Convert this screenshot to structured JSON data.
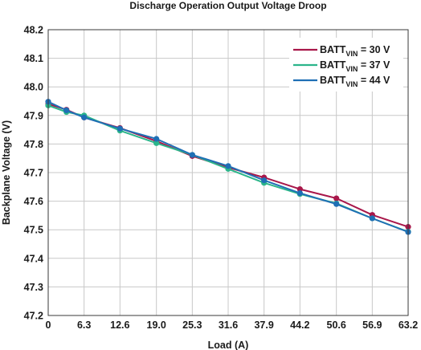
{
  "chart_data": {
    "type": "line",
    "title": "Discharge Operation Output Voltage Droop",
    "xlabel": "Load (A)",
    "ylabel": "Backplane Voltage (V)",
    "x_ticks": [
      "0",
      "6.3",
      "12.6",
      "19.0",
      "25.3",
      "31.6",
      "37.9",
      "44.2",
      "50.6",
      "56.9",
      "63.2"
    ],
    "y_ticks": [
      "47.2",
      "47.3",
      "47.4",
      "47.5",
      "47.6",
      "47.7",
      "47.8",
      "47.9",
      "48.0",
      "48.1",
      "48.2"
    ],
    "xlim": [
      0,
      63.2
    ],
    "ylim": [
      47.2,
      48.2
    ],
    "grid": true,
    "legend_position": "top-right",
    "series": [
      {
        "name": "BATT",
        "name_sub": "VIN",
        "name_suffix": " = 30 V",
        "color": "#a8174a",
        "x": [
          0,
          3.2,
          6.3,
          12.6,
          19.0,
          25.3,
          31.6,
          37.9,
          44.2,
          50.6,
          56.9,
          63.2
        ],
        "y": [
          47.94,
          47.92,
          47.893,
          47.856,
          47.81,
          47.758,
          47.718,
          47.683,
          47.642,
          47.61,
          47.552,
          47.51
        ]
      },
      {
        "name": "BATT",
        "name_sub": "VIN",
        "name_suffix": " = 37 V",
        "color": "#2bb58a",
        "x": [
          0,
          3.2,
          6.3,
          12.6,
          19.0,
          25.3,
          31.6,
          37.9,
          44.2,
          50.6,
          56.9,
          63.2
        ],
        "y": [
          47.935,
          47.912,
          47.9,
          47.847,
          47.803,
          47.762,
          47.713,
          47.664,
          47.625,
          47.592,
          47.54,
          47.493
        ]
      },
      {
        "name": "BATT",
        "name_sub": "VIN",
        "name_suffix": " = 44 V",
        "color": "#1f6fb5",
        "x": [
          0,
          3.2,
          6.3,
          12.6,
          19.0,
          25.3,
          31.6,
          37.9,
          44.2,
          50.6,
          56.9,
          63.2
        ],
        "y": [
          47.948,
          47.918,
          47.893,
          47.854,
          47.818,
          47.762,
          47.723,
          47.673,
          47.628,
          47.59,
          47.54,
          47.492
        ]
      }
    ]
  }
}
